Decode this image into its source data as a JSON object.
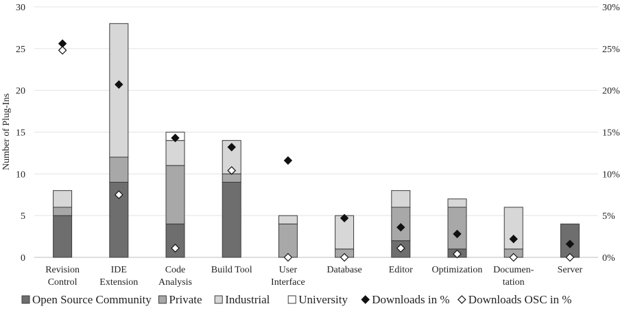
{
  "chart_data": {
    "type": "bar",
    "stacked": true,
    "categories": [
      [
        "Revision",
        "Control"
      ],
      [
        "IDE",
        "Extension"
      ],
      [
        "Code",
        "Analysis"
      ],
      [
        "Build Tool"
      ],
      [
        "User",
        "Interface"
      ],
      [
        "Database"
      ],
      [
        "Editor"
      ],
      [
        "Optimization"
      ],
      [
        "Documen-",
        "tation"
      ],
      [
        "Server"
      ]
    ],
    "series": [
      {
        "name": "Open Source Community",
        "type": "bar",
        "axis": "left",
        "color": "#6e6e6e",
        "values": [
          5,
          9,
          4,
          9,
          0,
          0,
          2,
          1,
          0,
          4
        ]
      },
      {
        "name": "Private",
        "type": "bar",
        "axis": "left",
        "color": "#a8a8a8",
        "values": [
          1,
          3,
          7,
          1,
          4,
          1,
          4,
          5,
          1,
          0
        ]
      },
      {
        "name": "Industrial",
        "type": "bar",
        "axis": "left",
        "color": "#d7d7d7",
        "values": [
          2,
          16,
          3,
          4,
          1,
          4,
          2,
          1,
          5,
          0
        ]
      },
      {
        "name": "University",
        "type": "bar",
        "axis": "left",
        "color": "#ffffff",
        "values": [
          0,
          0,
          1,
          0,
          0,
          0,
          0,
          0,
          0,
          0
        ]
      },
      {
        "name": "Downloads in %",
        "type": "scatter",
        "marker": "filled-diamond",
        "axis": "right",
        "values": [
          25.6,
          20.7,
          14.3,
          13.2,
          11.6,
          4.7,
          3.6,
          2.8,
          2.2,
          1.6
        ]
      },
      {
        "name": "Downloads OSC in %",
        "type": "scatter",
        "marker": "open-diamond",
        "axis": "right",
        "values": [
          24.8,
          7.5,
          1.1,
          10.4,
          0.0,
          0.0,
          1.1,
          0.4,
          0.0,
          0.0
        ]
      }
    ],
    "ylabel": "Number of Plug-Ins",
    "ylim": [
      0,
      30
    ],
    "yticks": [
      "0",
      "5",
      "10",
      "15",
      "20",
      "25",
      "30"
    ],
    "y2lim": [
      0,
      30
    ],
    "y2ticks": [
      "0%",
      "5%",
      "10%",
      "15%",
      "20%",
      "25%",
      "30%"
    ],
    "grid": true,
    "legend_position": "bottom"
  }
}
